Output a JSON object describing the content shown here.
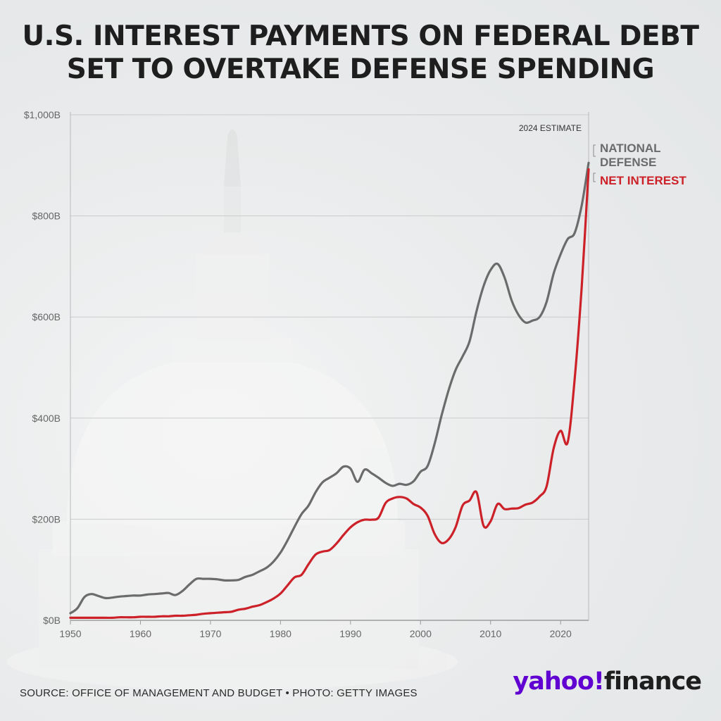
{
  "title_lines": [
    "U.S. INTEREST PAYMENTS ON FEDERAL DEBT",
    "SET TO OVERTAKE DEFENSE SPENDING"
  ],
  "source": "SOURCE: OFFICE OF MANAGEMENT AND BUDGET • PHOTO: GETTY IMAGES",
  "brand": {
    "yahoo": "yahoo!",
    "finance": "finance",
    "yahoo_color": "#6001d2"
  },
  "chart_data": {
    "type": "line",
    "title": "U.S. INTEREST PAYMENTS ON FEDERAL DEBT SET TO OVERTAKE DEFENSE SPENDING",
    "xlabel": "",
    "ylabel": "",
    "xlim": [
      1950,
      2024
    ],
    "ylim": [
      0,
      1000
    ],
    "x_ticks": [
      1950,
      1960,
      1970,
      1980,
      1990,
      2000,
      2010,
      2020
    ],
    "y_ticks": [
      0,
      200,
      400,
      600,
      800,
      1000
    ],
    "y_tick_labels": [
      "$0B",
      "$200B",
      "$400B",
      "$600B",
      "$800B",
      "$1,000B"
    ],
    "grid": true,
    "annotation": "2024 ESTIMATE",
    "colors": {
      "defense": "#6b6b6b",
      "interest": "#cc2128"
    },
    "series": [
      {
        "name": "NATIONAL DEFENSE",
        "label_lines": [
          "NATIONAL",
          "DEFENSE"
        ],
        "color": "#6b6b6b",
        "x": [
          1950,
          1951,
          1952,
          1953,
          1954,
          1955,
          1956,
          1957,
          1958,
          1959,
          1960,
          1961,
          1962,
          1963,
          1964,
          1965,
          1966,
          1967,
          1968,
          1969,
          1970,
          1971,
          1972,
          1973,
          1974,
          1975,
          1976,
          1977,
          1978,
          1979,
          1980,
          1981,
          1982,
          1983,
          1984,
          1985,
          1986,
          1987,
          1988,
          1989,
          1990,
          1991,
          1992,
          1993,
          1994,
          1995,
          1996,
          1997,
          1998,
          1999,
          2000,
          2001,
          2002,
          2003,
          2004,
          2005,
          2006,
          2007,
          2008,
          2009,
          2010,
          2011,
          2012,
          2013,
          2014,
          2015,
          2016,
          2017,
          2018,
          2019,
          2020,
          2021,
          2022,
          2023,
          2024
        ],
        "values": [
          14,
          24,
          46,
          52,
          48,
          44,
          45,
          47,
          48,
          49,
          49,
          51,
          52,
          53,
          54,
          50,
          58,
          71,
          82,
          82,
          82,
          81,
          79,
          79,
          80,
          86,
          90,
          97,
          104,
          116,
          134,
          158,
          185,
          210,
          227,
          253,
          273,
          282,
          291,
          304,
          300,
          274,
          298,
          291,
          282,
          272,
          266,
          270,
          268,
          275,
          294,
          305,
          349,
          405,
          455,
          495,
          522,
          552,
          612,
          661,
          693,
          705,
          678,
          633,
          604,
          589,
          593,
          600,
          630,
          686,
          724,
          754,
          766,
          820,
          905
        ]
      },
      {
        "name": "NET INTEREST",
        "label_lines": [
          "NET INTEREST"
        ],
        "color": "#cc2128",
        "x": [
          1950,
          1951,
          1952,
          1953,
          1954,
          1955,
          1956,
          1957,
          1958,
          1959,
          1960,
          1961,
          1962,
          1963,
          1964,
          1965,
          1966,
          1967,
          1968,
          1969,
          1970,
          1971,
          1972,
          1973,
          1974,
          1975,
          1976,
          1977,
          1978,
          1979,
          1980,
          1981,
          1982,
          1983,
          1984,
          1985,
          1986,
          1987,
          1988,
          1989,
          1990,
          1991,
          1992,
          1993,
          1994,
          1995,
          1996,
          1997,
          1998,
          1999,
          2000,
          2001,
          2002,
          2003,
          2004,
          2005,
          2006,
          2007,
          2008,
          2009,
          2010,
          2011,
          2012,
          2013,
          2014,
          2015,
          2016,
          2017,
          2018,
          2019,
          2020,
          2021,
          2022,
          2023,
          2024
        ],
        "values": [
          5,
          5,
          5,
          5,
          5,
          5,
          5,
          6,
          6,
          6,
          7,
          7,
          7,
          8,
          8,
          9,
          9,
          10,
          11,
          13,
          14,
          15,
          16,
          17,
          21,
          23,
          27,
          30,
          36,
          43,
          53,
          69,
          85,
          90,
          111,
          130,
          136,
          139,
          152,
          169,
          184,
          194,
          199,
          199,
          203,
          232,
          241,
          244,
          241,
          230,
          223,
          207,
          171,
          153,
          160,
          184,
          227,
          237,
          253,
          187,
          196,
          230,
          220,
          221,
          222,
          229,
          233,
          245,
          265,
          340,
          375,
          352,
          476,
          658,
          892
        ]
      }
    ]
  }
}
